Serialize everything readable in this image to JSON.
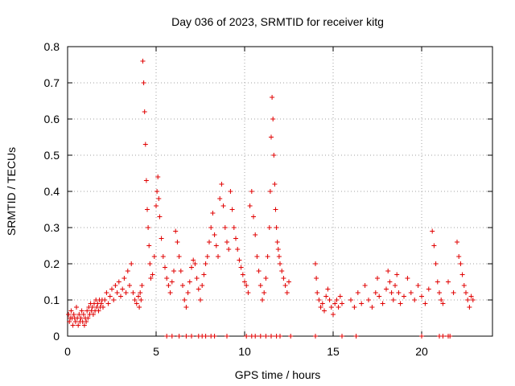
{
  "chart_data": {
    "type": "scatter",
    "title": "Day 036 of 2023, SRMTID for receiver kitg",
    "xlabel": "GPS time / hours",
    "ylabel": "SRMTID / TECUs",
    "xlim": [
      0,
      24
    ],
    "ylim": [
      0,
      0.8
    ],
    "xticks": [
      0,
      5,
      10,
      15,
      20
    ],
    "xtick_labels": [
      "0",
      "5",
      "10",
      "15",
      "20"
    ],
    "yticks": [
      0,
      0.1,
      0.2,
      0.3,
      0.4,
      0.5,
      0.6,
      0.7,
      0.8
    ],
    "ytick_labels": [
      "0",
      "0.1",
      "0.2",
      "0.3",
      "0.4",
      "0.5",
      "0.6",
      "0.7",
      "0.8"
    ],
    "grid": true,
    "marker": "+",
    "color": "#e00000",
    "series": [
      {
        "name": "SRMTID",
        "points": [
          [
            0.05,
            0.06
          ],
          [
            0.1,
            0.04
          ],
          [
            0.15,
            0.05
          ],
          [
            0.2,
            0.07
          ],
          [
            0.25,
            0.05
          ],
          [
            0.3,
            0.03
          ],
          [
            0.35,
            0.06
          ],
          [
            0.4,
            0.05
          ],
          [
            0.45,
            0.04
          ],
          [
            0.5,
            0.08
          ],
          [
            0.55,
            0.05
          ],
          [
            0.6,
            0.03
          ],
          [
            0.65,
            0.06
          ],
          [
            0.7,
            0.04
          ],
          [
            0.75,
            0.05
          ],
          [
            0.8,
            0.07
          ],
          [
            0.85,
            0.04
          ],
          [
            0.9,
            0.06
          ],
          [
            0.95,
            0.03
          ],
          [
            1.0,
            0.05
          ],
          [
            1.05,
            0.04
          ],
          [
            1.1,
            0.07
          ],
          [
            1.15,
            0.05
          ],
          [
            1.2,
            0.08
          ],
          [
            1.25,
            0.06
          ],
          [
            1.3,
            0.09
          ],
          [
            1.35,
            0.07
          ],
          [
            1.4,
            0.08
          ],
          [
            1.45,
            0.06
          ],
          [
            1.5,
            0.09
          ],
          [
            1.55,
            0.07
          ],
          [
            1.6,
            0.1
          ],
          [
            1.65,
            0.08
          ],
          [
            1.7,
            0.09
          ],
          [
            1.75,
            0.07
          ],
          [
            1.8,
            0.1
          ],
          [
            1.85,
            0.08
          ],
          [
            1.9,
            0.09
          ],
          [
            1.95,
            0.1
          ],
          [
            2.0,
            0.08
          ],
          [
            2.1,
            0.1
          ],
          [
            2.2,
            0.12
          ],
          [
            2.3,
            0.09
          ],
          [
            2.4,
            0.11
          ],
          [
            2.5,
            0.13
          ],
          [
            2.6,
            0.1
          ],
          [
            2.7,
            0.14
          ],
          [
            2.8,
            0.12
          ],
          [
            2.9,
            0.15
          ],
          [
            3.0,
            0.11
          ],
          [
            3.1,
            0.13
          ],
          [
            3.2,
            0.16
          ],
          [
            3.3,
            0.12
          ],
          [
            3.4,
            0.18
          ],
          [
            3.5,
            0.14
          ],
          [
            3.6,
            0.2
          ],
          [
            3.7,
            0.12
          ],
          [
            3.8,
            0.1
          ],
          [
            3.9,
            0.09
          ],
          [
            4.0,
            0.11
          ],
          [
            4.05,
            0.08
          ],
          [
            4.1,
            0.12
          ],
          [
            4.15,
            0.1
          ],
          [
            4.2,
            0.14
          ],
          [
            4.25,
            0.76
          ],
          [
            4.3,
            0.7
          ],
          [
            4.35,
            0.62
          ],
          [
            4.4,
            0.53
          ],
          [
            4.45,
            0.43
          ],
          [
            4.5,
            0.35
          ],
          [
            4.55,
            0.3
          ],
          [
            4.6,
            0.25
          ],
          [
            4.65,
            0.2
          ],
          [
            4.7,
            0.16
          ],
          [
            4.8,
            0.17
          ],
          [
            4.9,
            0.22
          ],
          [
            5.0,
            0.36
          ],
          [
            5.05,
            0.4
          ],
          [
            5.1,
            0.44
          ],
          [
            5.15,
            0.38
          ],
          [
            5.2,
            0.33
          ],
          [
            5.3,
            0.27
          ],
          [
            5.4,
            0.22
          ],
          [
            5.5,
            0.19
          ],
          [
            5.6,
            0.16
          ],
          [
            5.7,
            0.14
          ],
          [
            5.8,
            0.12
          ],
          [
            5.9,
            0.15
          ],
          [
            6.0,
            0.18
          ],
          [
            6.1,
            0.29
          ],
          [
            6.2,
            0.26
          ],
          [
            6.3,
            0.22
          ],
          [
            6.4,
            0.18
          ],
          [
            6.5,
            0.14
          ],
          [
            6.6,
            0.1
          ],
          [
            6.7,
            0.08
          ],
          [
            6.8,
            0.12
          ],
          [
            6.9,
            0.15
          ],
          [
            7.0,
            0.19
          ],
          [
            7.1,
            0.21
          ],
          [
            7.2,
            0.2
          ],
          [
            7.3,
            0.16
          ],
          [
            7.4,
            0.13
          ],
          [
            7.5,
            0.1
          ],
          [
            7.6,
            0.14
          ],
          [
            7.7,
            0.17
          ],
          [
            7.8,
            0.2
          ],
          [
            7.9,
            0.22
          ],
          [
            8.0,
            0.26
          ],
          [
            8.1,
            0.3
          ],
          [
            8.2,
            0.34
          ],
          [
            8.3,
            0.28
          ],
          [
            8.4,
            0.25
          ],
          [
            8.5,
            0.22
          ],
          [
            8.6,
            0.38
          ],
          [
            8.7,
            0.42
          ],
          [
            8.8,
            0.36
          ],
          [
            8.9,
            0.3
          ],
          [
            9.0,
            0.26
          ],
          [
            9.1,
            0.24
          ],
          [
            9.2,
            0.4
          ],
          [
            9.3,
            0.35
          ],
          [
            9.4,
            0.3
          ],
          [
            9.5,
            0.27
          ],
          [
            9.6,
            0.24
          ],
          [
            9.7,
            0.21
          ],
          [
            9.8,
            0.19
          ],
          [
            9.9,
            0.17
          ],
          [
            10.0,
            0.15
          ],
          [
            10.1,
            0.14
          ],
          [
            10.2,
            0.12
          ],
          [
            10.3,
            0.36
          ],
          [
            10.4,
            0.4
          ],
          [
            10.5,
            0.33
          ],
          [
            10.6,
            0.28
          ],
          [
            10.7,
            0.22
          ],
          [
            10.8,
            0.18
          ],
          [
            10.9,
            0.14
          ],
          [
            11.0,
            0.1
          ],
          [
            11.1,
            0.12
          ],
          [
            11.2,
            0.16
          ],
          [
            11.3,
            0.22
          ],
          [
            11.4,
            0.3
          ],
          [
            11.45,
            0.4
          ],
          [
            11.5,
            0.55
          ],
          [
            11.55,
            0.66
          ],
          [
            11.6,
            0.6
          ],
          [
            11.65,
            0.5
          ],
          [
            11.7,
            0.42
          ],
          [
            11.75,
            0.35
          ],
          [
            11.8,
            0.3
          ],
          [
            11.85,
            0.26
          ],
          [
            11.9,
            0.24
          ],
          [
            11.95,
            0.22
          ],
          [
            12.0,
            0.2
          ],
          [
            12.1,
            0.18
          ],
          [
            12.2,
            0.16
          ],
          [
            12.3,
            0.14
          ],
          [
            12.4,
            0.12
          ],
          [
            12.5,
            0.15
          ],
          [
            14.0,
            0.2
          ],
          [
            14.05,
            0.16
          ],
          [
            14.1,
            0.12
          ],
          [
            14.2,
            0.1
          ],
          [
            14.3,
            0.08
          ],
          [
            14.4,
            0.09
          ],
          [
            14.5,
            0.07
          ],
          [
            14.6,
            0.11
          ],
          [
            14.7,
            0.13
          ],
          [
            14.8,
            0.1
          ],
          [
            14.9,
            0.08
          ],
          [
            15.0,
            0.06
          ],
          [
            15.1,
            0.09
          ],
          [
            15.2,
            0.1
          ],
          [
            15.3,
            0.08
          ],
          [
            15.4,
            0.11
          ],
          [
            15.5,
            0.09
          ],
          [
            16.0,
            0.1
          ],
          [
            16.2,
            0.08
          ],
          [
            16.4,
            0.12
          ],
          [
            16.6,
            0.09
          ],
          [
            16.8,
            0.14
          ],
          [
            17.0,
            0.1
          ],
          [
            17.2,
            0.08
          ],
          [
            17.4,
            0.12
          ],
          [
            17.5,
            0.16
          ],
          [
            17.6,
            0.11
          ],
          [
            17.8,
            0.09
          ],
          [
            18.0,
            0.13
          ],
          [
            18.1,
            0.18
          ],
          [
            18.2,
            0.15
          ],
          [
            18.3,
            0.12
          ],
          [
            18.4,
            0.1
          ],
          [
            18.5,
            0.14
          ],
          [
            18.6,
            0.17
          ],
          [
            18.7,
            0.12
          ],
          [
            18.8,
            0.09
          ],
          [
            19.0,
            0.11
          ],
          [
            19.2,
            0.16
          ],
          [
            19.4,
            0.12
          ],
          [
            19.6,
            0.1
          ],
          [
            19.8,
            0.14
          ],
          [
            20.0,
            0.11
          ],
          [
            20.2,
            0.09
          ],
          [
            20.4,
            0.13
          ],
          [
            20.6,
            0.29
          ],
          [
            20.7,
            0.25
          ],
          [
            20.8,
            0.2
          ],
          [
            20.9,
            0.15
          ],
          [
            21.0,
            0.12
          ],
          [
            21.1,
            0.1
          ],
          [
            21.2,
            0.09
          ],
          [
            21.5,
            0.15
          ],
          [
            21.8,
            0.12
          ],
          [
            22.0,
            0.26
          ],
          [
            22.1,
            0.22
          ],
          [
            22.2,
            0.2
          ],
          [
            22.3,
            0.17
          ],
          [
            22.4,
            0.14
          ],
          [
            22.5,
            0.12
          ],
          [
            22.6,
            0.1
          ],
          [
            22.7,
            0.08
          ],
          [
            22.8,
            0.11
          ],
          [
            22.9,
            0.1
          ],
          [
            5.6,
            0
          ],
          [
            5.9,
            0
          ],
          [
            6.3,
            0
          ],
          [
            6.7,
            0
          ],
          [
            7.0,
            0
          ],
          [
            7.4,
            0
          ],
          [
            7.6,
            0
          ],
          [
            7.8,
            0
          ],
          [
            8.1,
            0
          ],
          [
            8.3,
            0
          ],
          [
            9.0,
            0
          ],
          [
            10.1,
            0
          ],
          [
            10.4,
            0
          ],
          [
            10.6,
            0
          ],
          [
            10.9,
            0
          ],
          [
            11.2,
            0
          ],
          [
            11.5,
            0
          ],
          [
            11.8,
            0
          ],
          [
            12.0,
            0
          ],
          [
            12.6,
            0
          ],
          [
            14.0,
            0
          ],
          [
            15.5,
            0
          ],
          [
            16.3,
            0
          ],
          [
            20.0,
            0
          ],
          [
            21.0,
            0
          ],
          [
            21.2,
            0
          ],
          [
            21.5,
            0
          ],
          [
            21.6,
            0
          ]
        ]
      }
    ]
  }
}
